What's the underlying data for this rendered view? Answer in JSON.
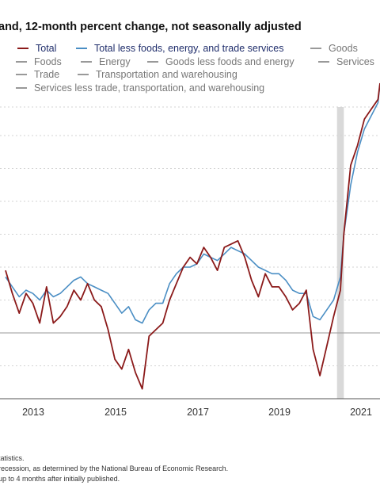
{
  "title": "and, 12-month percent change, not seasonally adjusted",
  "legend": [
    {
      "label": "Total",
      "name": "legend-total",
      "selected": true
    },
    {
      "label": "Total less foods, energy, and trade services",
      "name": "legend-core",
      "selected": true
    },
    {
      "label": "Goods",
      "name": "legend-goods",
      "selected": false
    },
    {
      "label": "Foods",
      "name": "legend-foods",
      "selected": false
    },
    {
      "label": "Energy",
      "name": "legend-energy",
      "selected": false
    },
    {
      "label": "Goods less foods and energy",
      "name": "legend-goods-less",
      "selected": false
    },
    {
      "label": "Services",
      "name": "legend-services",
      "selected": false
    },
    {
      "label": "Trade",
      "name": "legend-trade",
      "selected": false
    },
    {
      "label": "Transportation and warehousing",
      "name": "legend-transport",
      "selected": false
    },
    {
      "label": "Services less trade, transportation, and warehousing",
      "name": "legend-services-less",
      "selected": false
    }
  ],
  "notes": [
    "tatistics.",
    "recession, as determined by the National Bureau of Economic Research.",
    "up to 4 months after initially published."
  ],
  "colors": {
    "total": "#8b1a1a",
    "core": "#4a8ec4",
    "recession": "#d9d9d9",
    "grid": "#d3d3d3",
    "zero": "#9a9a9a"
  },
  "chart_data": {
    "type": "line",
    "x_ticks": [
      "2013",
      "2015",
      "2017",
      "2019",
      "2021"
    ],
    "x_range": [
      "2012-01",
      "2021-08"
    ],
    "grid": true,
    "recession": [
      "2020-02",
      "2020-04"
    ],
    "series": [
      {
        "name": "Total",
        "x": [
          "2012-01",
          "2012-03",
          "2012-05",
          "2012-07",
          "2012-09",
          "2012-11",
          "2013-01",
          "2013-03",
          "2013-05",
          "2013-07",
          "2013-09",
          "2013-11",
          "2014-01",
          "2014-03",
          "2014-05",
          "2014-07",
          "2014-09",
          "2014-11",
          "2015-01",
          "2015-03",
          "2015-05",
          "2015-07",
          "2015-09",
          "2015-11",
          "2016-01",
          "2016-03",
          "2016-05",
          "2016-07",
          "2016-09",
          "2016-11",
          "2017-01",
          "2017-03",
          "2017-05",
          "2017-07",
          "2017-09",
          "2017-11",
          "2018-01",
          "2018-03",
          "2018-05",
          "2018-07",
          "2018-09",
          "2018-11",
          "2019-01",
          "2019-03",
          "2019-05",
          "2019-07",
          "2019-09",
          "2019-11",
          "2020-01",
          "2020-03",
          "2020-04",
          "2020-06",
          "2020-08",
          "2020-10",
          "2020-12",
          "2021-02",
          "2021-04",
          "2021-06",
          "2021-08"
        ],
        "y": [
          1.9,
          1.2,
          0.6,
          1.2,
          0.9,
          0.3,
          1.4,
          0.3,
          0.5,
          0.8,
          1.3,
          1.0,
          1.5,
          1.0,
          0.8,
          0.1,
          -0.8,
          -1.1,
          -0.5,
          -1.2,
          -1.7,
          -0.1,
          0.1,
          0.3,
          1.0,
          1.5,
          2.0,
          2.3,
          2.1,
          2.6,
          2.3,
          1.9,
          2.6,
          2.7,
          2.8,
          2.3,
          1.6,
          1.1,
          1.8,
          1.4,
          1.4,
          1.1,
          0.7,
          0.9,
          1.3,
          -0.5,
          -1.3,
          -0.4,
          0.5,
          1.3,
          3.0,
          5.1,
          5.7,
          6.5,
          6.8,
          7.1,
          8.3,
          10.1,
          11.4
        ]
      },
      {
        "name": "Total less foods, energy, and trade services",
        "x": [
          "2012-01",
          "2012-03",
          "2012-05",
          "2012-07",
          "2012-09",
          "2012-11",
          "2013-01",
          "2013-03",
          "2013-05",
          "2013-07",
          "2013-09",
          "2013-11",
          "2014-01",
          "2014-03",
          "2014-05",
          "2014-07",
          "2014-09",
          "2014-11",
          "2015-01",
          "2015-03",
          "2015-05",
          "2015-07",
          "2015-09",
          "2015-11",
          "2016-01",
          "2016-03",
          "2016-05",
          "2016-07",
          "2016-09",
          "2016-11",
          "2017-01",
          "2017-03",
          "2017-05",
          "2017-07",
          "2017-09",
          "2017-11",
          "2018-01",
          "2018-03",
          "2018-05",
          "2018-07",
          "2018-09",
          "2018-11",
          "2019-01",
          "2019-03",
          "2019-05",
          "2019-07",
          "2019-09",
          "2019-11",
          "2020-01",
          "2020-03",
          "2020-04",
          "2020-06",
          "2020-08",
          "2020-10",
          "2020-12",
          "2021-02",
          "2021-04",
          "2021-06",
          "2021-08"
        ],
        "y": [
          1.7,
          1.4,
          1.1,
          1.3,
          1.2,
          1.0,
          1.3,
          1.1,
          1.2,
          1.4,
          1.6,
          1.7,
          1.5,
          1.4,
          1.3,
          1.2,
          0.9,
          0.6,
          0.8,
          0.4,
          0.3,
          0.7,
          0.9,
          0.9,
          1.5,
          1.8,
          2.0,
          2.0,
          2.1,
          2.4,
          2.3,
          2.2,
          2.4,
          2.6,
          2.5,
          2.4,
          2.2,
          2.0,
          1.9,
          1.8,
          1.8,
          1.6,
          1.3,
          1.2,
          1.2,
          0.5,
          0.4,
          0.7,
          1.0,
          1.7,
          3.0,
          4.5,
          5.5,
          6.2,
          6.6,
          7.0,
          7.6,
          8.8,
          9.9
        ]
      }
    ]
  }
}
